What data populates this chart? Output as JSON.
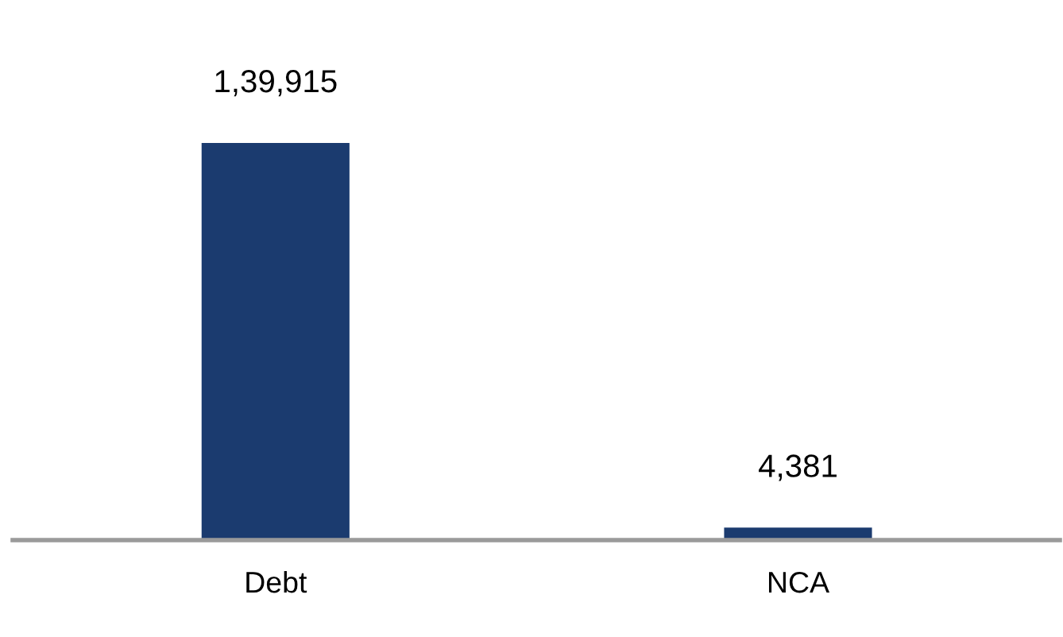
{
  "chart_data": {
    "type": "bar",
    "categories": [
      "Debt",
      "NCA"
    ],
    "values": [
      139915,
      4381
    ],
    "value_labels": [
      "1,39,915",
      "4,381"
    ],
    "color": "#1b3b6f",
    "grid": false,
    "legend": false
  }
}
